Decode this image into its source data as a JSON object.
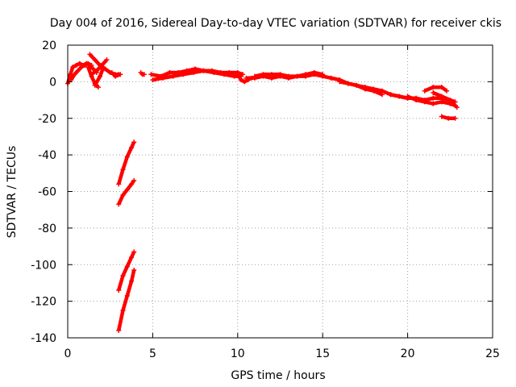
{
  "chart_data": {
    "type": "line",
    "title": "Day 004 of 2016, Sidereal Day-to-day VTEC variation (SDTVAR) for receiver ckis",
    "xlabel": "GPS time / hours",
    "ylabel": "SDTVAR / TECUs",
    "xlim": [
      0,
      25
    ],
    "ylim": [
      -140,
      20
    ],
    "xticks": [
      0,
      5,
      10,
      15,
      20,
      25
    ],
    "yticks": [
      20,
      0,
      -20,
      -40,
      -60,
      -80,
      -100,
      -120,
      -140
    ],
    "grid": true,
    "legend": "none",
    "series_color": "#ff0000",
    "series": [
      {
        "x": [
          0.0,
          0.15,
          0.3,
          0.5,
          0.7,
          0.9,
          1.1,
          1.3,
          1.5,
          1.7
        ],
        "y": [
          -1,
          4,
          8,
          9,
          10,
          9,
          10,
          9,
          7,
          5
        ]
      },
      {
        "x": [
          0.2,
          0.4,
          0.6,
          0.8,
          1.0,
          1.2,
          1.4
        ],
        "y": [
          1,
          4,
          6,
          8,
          9,
          10,
          9
        ]
      },
      {
        "x": [
          1.3,
          1.6,
          1.9,
          2.2,
          2.5,
          2.8,
          3.0
        ],
        "y": [
          15,
          12,
          9,
          7,
          5,
          4,
          4
        ]
      },
      {
        "x": [
          1.4,
          1.7,
          2.0,
          2.3
        ],
        "y": [
          4,
          6,
          9,
          12
        ]
      },
      {
        "x": [
          1.2,
          1.4,
          1.6,
          1.8
        ],
        "y": [
          8,
          3,
          -1,
          -3
        ]
      },
      {
        "x": [
          1.6,
          1.9,
          2.1
        ],
        "y": [
          -2,
          3,
          8
        ]
      },
      {
        "x": [
          2.6,
          2.8,
          3.1
        ],
        "y": [
          5,
          3,
          4
        ]
      },
      {
        "x": [
          4.3,
          4.4,
          4.5
        ],
        "y": [
          5,
          4,
          4
        ]
      },
      {
        "x": [
          4.9,
          5.5,
          6.0,
          6.5,
          7.0,
          7.5,
          8.0,
          8.5,
          9.0,
          9.5,
          10.0,
          10.3
        ],
        "y": [
          4,
          3,
          5,
          5,
          6,
          7,
          6,
          6,
          5,
          5,
          5,
          4
        ]
      },
      {
        "x": [
          5.0,
          5.6,
          6.2,
          6.8,
          7.4,
          8.0,
          8.6,
          9.2,
          9.8,
          10.2
        ],
        "y": [
          1,
          2,
          3,
          4,
          5,
          6,
          5,
          4,
          3,
          3
        ]
      },
      {
        "x": [
          10.0,
          10.2,
          10.4,
          10.6,
          10.8
        ],
        "y": [
          4,
          1,
          0,
          1,
          2
        ]
      },
      {
        "x": [
          10.5,
          11.0,
          11.5,
          12.0,
          12.5,
          13.0,
          13.5,
          14.0,
          14.5,
          15.0,
          15.5,
          16.0
        ],
        "y": [
          2,
          2,
          3,
          2,
          3,
          2,
          3,
          3,
          4,
          3,
          2,
          1
        ]
      },
      {
        "x": [
          11.0,
          11.5,
          12.0,
          12.5,
          13.0,
          13.5,
          14.0,
          14.5,
          15.0
        ],
        "y": [
          3,
          4,
          4,
          4,
          3,
          3,
          4,
          5,
          4
        ]
      },
      {
        "x": [
          16.0,
          16.5,
          17.0,
          17.5,
          18.0,
          18.5,
          19.0,
          19.5,
          20.0
        ],
        "y": [
          0,
          -1,
          -2,
          -3,
          -4,
          -5,
          -7,
          -8,
          -9
        ]
      },
      {
        "x": [
          15.5,
          16.0,
          16.5,
          17.0,
          17.5,
          18.0,
          18.5
        ],
        "y": [
          2,
          1,
          -1,
          -2,
          -4,
          -5,
          -7
        ]
      },
      {
        "x": [
          19.0,
          19.5,
          20.0,
          20.5,
          21.0,
          21.5,
          22.0,
          22.5,
          22.8
        ],
        "y": [
          -7,
          -8,
          -9,
          -9,
          -10,
          -9,
          -9,
          -10,
          -11
        ]
      },
      {
        "x": [
          20.0,
          20.5,
          21.0,
          21.5,
          22.0,
          22.5,
          22.8
        ],
        "y": [
          -8,
          -10,
          -11,
          -12,
          -11,
          -12,
          -13
        ]
      },
      {
        "x": [
          21.0,
          21.5,
          22.0,
          22.3
        ],
        "y": [
          -5,
          -3,
          -3,
          -5
        ]
      },
      {
        "x": [
          21.5,
          22.0,
          22.5,
          22.9
        ],
        "y": [
          -6,
          -8,
          -10,
          -14
        ]
      },
      {
        "x": [
          22.0,
          22.4,
          22.8
        ],
        "y": [
          -19,
          -20,
          -20
        ]
      },
      {
        "x": [
          3.0,
          3.25,
          3.5,
          3.75,
          3.9
        ],
        "y": [
          -56,
          -48,
          -41,
          -36,
          -33
        ]
      },
      {
        "x": [
          3.0,
          3.25,
          3.5,
          3.75,
          3.9
        ],
        "y": [
          -67,
          -62,
          -59,
          -56,
          -54
        ]
      },
      {
        "x": [
          3.0,
          3.25,
          3.5,
          3.75,
          3.9
        ],
        "y": [
          -114,
          -106,
          -101,
          -96,
          -93
        ]
      },
      {
        "x": [
          3.0,
          3.25,
          3.5,
          3.75,
          3.9
        ],
        "y": [
          -136,
          -125,
          -117,
          -109,
          -103
        ]
      }
    ]
  }
}
